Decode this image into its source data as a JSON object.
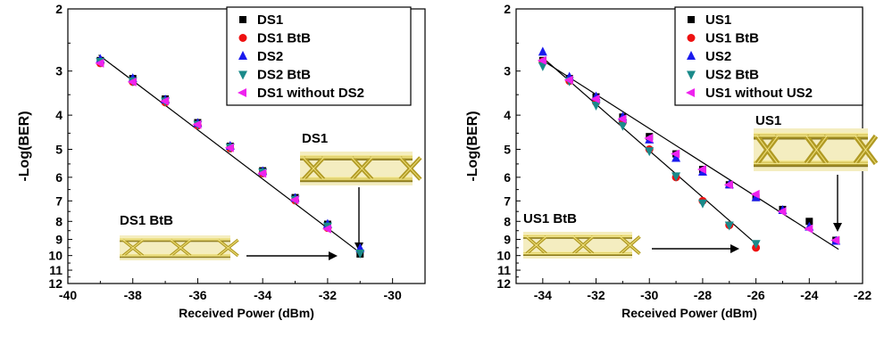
{
  "colors": {
    "DS1": "#000000",
    "DS1 BtB": "#ee1111",
    "DS2": "#1a1aee",
    "DS2 BtB": "#1a8a8a",
    "DS1 without DS2": "#ee22ee",
    "eye_fill": "#c9b33a",
    "eye_dark": "#6b5d10",
    "eye_bright": "#f0e27a"
  },
  "chart_data": [
    {
      "type": "scatter",
      "xlabel": "Received Power (dBm)",
      "ylabel": "-Log(BER)",
      "xlim": [
        -40,
        -29
      ],
      "xticks": [
        -40,
        -38,
        -36,
        -34,
        -32,
        -30
      ],
      "ylim": [
        2,
        12
      ],
      "yscale": "log-inverted",
      "yticks": [
        2,
        3,
        4,
        5,
        6,
        7,
        8,
        9,
        10,
        11,
        12
      ],
      "legend": "top-right",
      "grid": false,
      "series": [
        {
          "name": "DS1",
          "marker": "square",
          "color": "#000000",
          "x": [
            -39,
            -38,
            -37,
            -36,
            -35,
            -34,
            -33,
            -32,
            -31
          ],
          "y": [
            2.8,
            3.15,
            3.6,
            4.2,
            4.9,
            5.75,
            6.85,
            8.15,
            9.9
          ]
        },
        {
          "name": "DS1 BtB",
          "marker": "circle",
          "color": "#ee1111",
          "x": [
            -39,
            -38,
            -37,
            -36,
            -35,
            -34,
            -33,
            -32
          ],
          "y": [
            2.85,
            3.22,
            3.68,
            4.28,
            4.97,
            5.85,
            6.98,
            8.35
          ]
        },
        {
          "name": "DS2",
          "marker": "triangle-up",
          "color": "#1a1aee",
          "x": [
            -39,
            -38,
            -37,
            -36,
            -35,
            -34,
            -33,
            -32,
            -31
          ],
          "y": [
            2.78,
            3.15,
            3.62,
            4.22,
            4.9,
            5.78,
            6.88,
            8.15,
            9.55
          ]
        },
        {
          "name": "DS2 BtB",
          "marker": "triangle-down",
          "color": "#1a8a8a",
          "x": [
            -39,
            -38,
            -37,
            -36,
            -35,
            -34,
            -33,
            -32,
            -31
          ],
          "y": [
            2.82,
            3.2,
            3.65,
            4.25,
            4.93,
            5.8,
            6.93,
            8.25,
            9.85
          ]
        },
        {
          "name": "DS1 without DS2",
          "marker": "triangle-left",
          "color": "#ee22ee",
          "x": [
            -39,
            -38,
            -37,
            -36,
            -35,
            -34,
            -33,
            -32
          ],
          "y": [
            2.85,
            3.22,
            3.65,
            4.25,
            4.95,
            5.85,
            6.95,
            8.4
          ]
        }
      ],
      "fit_lines": [
        {
          "x": [
            -39.05,
            -30.95
          ],
          "y": [
            2.7,
            9.9
          ]
        }
      ],
      "eye_diagrams": [
        {
          "label": "DS1",
          "arrow_to": {
            "x": -31,
            "y": 9.6
          }
        },
        {
          "label": "DS1 BtB",
          "arrow_to": {
            "x": -31.1,
            "y": 9.9
          }
        }
      ]
    },
    {
      "type": "scatter",
      "xlabel": "Received Power (dBm)",
      "ylabel": "-Log(BER)",
      "xlim": [
        -35,
        -22
      ],
      "xticks": [
        -34,
        -32,
        -30,
        -28,
        -26,
        -24,
        -22
      ],
      "ylim": [
        2,
        12
      ],
      "yscale": "log-inverted",
      "yticks": [
        2,
        3,
        4,
        5,
        6,
        7,
        8,
        9,
        10,
        11,
        12
      ],
      "legend": "top-right",
      "grid": false,
      "series": [
        {
          "name": "US1",
          "marker": "square",
          "color": "#000000",
          "x": [
            -34,
            -33,
            -32,
            -31,
            -30,
            -29,
            -28,
            -27,
            -26,
            -25,
            -24,
            -23
          ],
          "y": [
            2.8,
            3.15,
            3.55,
            4.05,
            4.6,
            5.15,
            5.7,
            6.3,
            6.85,
            7.4,
            8.0,
            9.05
          ]
        },
        {
          "name": "US1 BtB",
          "marker": "circle",
          "color": "#ee1111",
          "x": [
            -34,
            -33,
            -32,
            -31,
            -30,
            -29,
            -28,
            -27,
            -26
          ],
          "y": [
            2.82,
            3.2,
            3.68,
            4.2,
            5.0,
            6.0,
            7.0,
            8.2,
            9.5
          ]
        },
        {
          "name": "US2",
          "marker": "triangle-up",
          "color": "#1a1aee",
          "x": [
            -34,
            -33,
            -32,
            -31,
            -30,
            -29,
            -28,
            -27,
            -26,
            -25,
            -24,
            -23
          ],
          "y": [
            2.65,
            3.12,
            3.55,
            4.05,
            4.7,
            5.3,
            5.8,
            6.3,
            6.85,
            7.45,
            8.3,
            9.1
          ]
        },
        {
          "name": "US2 BtB",
          "marker": "triangle-down",
          "color": "#1a8a8a",
          "x": [
            -34,
            -33,
            -32,
            -31,
            -30,
            -29,
            -28,
            -27,
            -26
          ],
          "y": [
            2.9,
            3.2,
            3.75,
            4.28,
            5.05,
            5.95,
            7.1,
            8.2,
            9.25
          ]
        },
        {
          "name": "US1 without US2",
          "marker": "triangle-left",
          "color": "#ee22ee",
          "x": [
            -34,
            -33,
            -32,
            -31,
            -30,
            -29,
            -28,
            -27,
            -26,
            -25,
            -24,
            -23
          ],
          "y": [
            2.8,
            3.18,
            3.6,
            4.1,
            4.65,
            5.15,
            5.7,
            6.3,
            6.7,
            7.5,
            8.4,
            9.05
          ]
        }
      ],
      "fit_lines": [
        {
          "x": [
            -34.0,
            -22.9
          ],
          "y": [
            2.8,
            9.6
          ]
        },
        {
          "x": [
            -34.0,
            -25.9
          ],
          "y": [
            2.75,
            9.4
          ]
        }
      ],
      "eye_diagrams": [
        {
          "label": "US1",
          "arrow_to": {
            "x": -23,
            "y": 8.8
          }
        },
        {
          "label": "US1 BtB",
          "arrow_to": {
            "x": -26.3,
            "y": 9.4
          }
        }
      ]
    }
  ]
}
